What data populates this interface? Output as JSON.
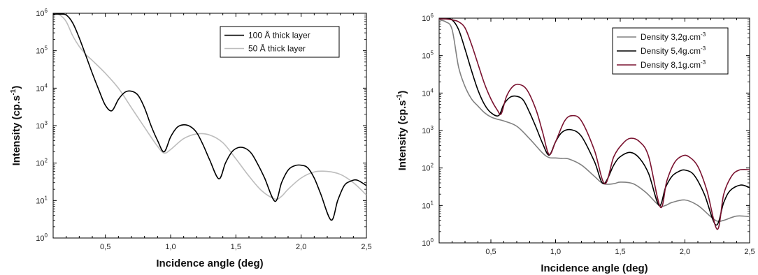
{
  "chart_data": [
    {
      "type": "line",
      "title": "",
      "xlabel": "Incidence angle (deg)",
      "ylabel": "Intensity (cp.s",
      "ylabel_sup": "-1",
      "ylabel_close": ")",
      "xscale": "linear",
      "yscale": "log",
      "xlim": [
        0.1,
        2.5
      ],
      "ylim": [
        1,
        1000000
      ],
      "x_ticks": [
        0.5,
        1.0,
        1.5,
        2.0,
        2.5
      ],
      "x_tick_labels": [
        "0,5",
        "1,0",
        "1,5",
        "2,0",
        "2,5"
      ],
      "y_tick_labels": [
        {
          "base": "10",
          "exp": "0"
        },
        {
          "base": "10",
          "exp": "1"
        },
        {
          "base": "10",
          "exp": "2"
        },
        {
          "base": "10",
          "exp": "3"
        },
        {
          "base": "10",
          "exp": "4"
        },
        {
          "base": "10",
          "exp": "5"
        },
        {
          "base": "10",
          "exp": "6"
        }
      ],
      "grid": false,
      "legend_position": "top-right",
      "series": [
        {
          "name": "100 Å thick layer",
          "color": "#000000",
          "x": [
            0.1,
            0.15,
            0.2,
            0.25,
            0.3,
            0.35,
            0.4,
            0.45,
            0.5,
            0.55,
            0.6,
            0.65,
            0.7,
            0.75,
            0.8,
            0.85,
            0.9,
            0.95,
            1.0,
            1.05,
            1.1,
            1.15,
            1.2,
            1.25,
            1.3,
            1.37,
            1.42,
            1.47,
            1.52,
            1.57,
            1.62,
            1.67,
            1.72,
            1.8,
            1.85,
            1.9,
            1.95,
            2.0,
            2.05,
            2.1,
            2.15,
            2.23,
            2.28,
            2.33,
            2.38,
            2.43,
            2.5
          ],
          "y": [
            950000,
            950000,
            900000,
            550000,
            220000,
            75000,
            25000,
            9000,
            3500,
            2500,
            5000,
            7800,
            8300,
            6500,
            3000,
            1000,
            400,
            200,
            500,
            900,
            1050,
            950,
            650,
            300,
            120,
            38,
            100,
            200,
            260,
            250,
            180,
            90,
            40,
            9.5,
            30,
            65,
            85,
            88,
            75,
            40,
            15,
            3,
            10,
            25,
            33,
            35,
            25
          ]
        },
        {
          "name": "50 Å thick layer",
          "color": "#bdbdbd",
          "x": [
            0.1,
            0.15,
            0.2,
            0.25,
            0.3,
            0.35,
            0.4,
            0.5,
            0.6,
            0.7,
            0.8,
            0.9,
            0.95,
            1.0,
            1.1,
            1.2,
            1.3,
            1.4,
            1.5,
            1.6,
            1.7,
            1.8,
            1.85,
            1.9,
            2.0,
            2.1,
            2.2,
            2.3,
            2.4,
            2.5
          ],
          "y": [
            950000,
            900000,
            600000,
            250000,
            130000,
            80000,
            55000,
            25000,
            10000,
            3000,
            900,
            280,
            185,
            230,
            450,
            600,
            560,
            350,
            130,
            45,
            18,
            11,
            13,
            20,
            40,
            58,
            60,
            50,
            30,
            14
          ]
        }
      ]
    },
    {
      "type": "line",
      "title": "",
      "xlabel": "Incidence angle (deg)",
      "ylabel": "Intensity (cp.s",
      "ylabel_sup": "-1",
      "ylabel_close": ")",
      "xscale": "linear",
      "yscale": "log",
      "xlim": [
        0.1,
        2.5
      ],
      "ylim": [
        1,
        1000000
      ],
      "x_ticks": [
        0.5,
        1.0,
        1.5,
        2.0,
        2.5
      ],
      "x_tick_labels": [
        "0,5",
        "1,0",
        "1,5",
        "2,0",
        "2,5"
      ],
      "y_tick_labels": [
        {
          "base": "10",
          "exp": "0"
        },
        {
          "base": "10",
          "exp": "1"
        },
        {
          "base": "10",
          "exp": "2"
        },
        {
          "base": "10",
          "exp": "3"
        },
        {
          "base": "10",
          "exp": "4"
        },
        {
          "base": "10",
          "exp": "5"
        },
        {
          "base": "10",
          "exp": "6"
        }
      ],
      "grid": false,
      "legend_position": "top-right",
      "series": [
        {
          "name": "Density 3,2g.cm",
          "name_sup": "-3",
          "color": "#808080",
          "x": [
            0.1,
            0.15,
            0.2,
            0.25,
            0.3,
            0.35,
            0.4,
            0.45,
            0.5,
            0.55,
            0.6,
            0.7,
            0.8,
            0.9,
            0.95,
            1.0,
            1.05,
            1.1,
            1.2,
            1.3,
            1.37,
            1.45,
            1.5,
            1.6,
            1.7,
            1.8,
            1.85,
            1.9,
            2.0,
            2.1,
            2.2,
            2.25,
            2.3,
            2.4,
            2.5
          ],
          "y": [
            900000,
            800000,
            500000,
            50000,
            15000,
            7000,
            4500,
            3000,
            2300,
            2000,
            1800,
            1300,
            600,
            250,
            190,
            185,
            180,
            175,
            120,
            60,
            38,
            38,
            42,
            38,
            22,
            10,
            10,
            12,
            14,
            10,
            5,
            3.8,
            4,
            5.2,
            5
          ]
        },
        {
          "name": "Density 5,4g.cm",
          "name_sup": "-3",
          "color": "#000000",
          "x": [
            0.1,
            0.15,
            0.2,
            0.25,
            0.3,
            0.35,
            0.4,
            0.45,
            0.5,
            0.56,
            0.6,
            0.65,
            0.7,
            0.75,
            0.8,
            0.85,
            0.9,
            0.95,
            1.0,
            1.05,
            1.12,
            1.2,
            1.3,
            1.37,
            1.45,
            1.5,
            1.58,
            1.65,
            1.72,
            1.8,
            1.85,
            1.9,
            1.95,
            2.0,
            2.07,
            2.15,
            2.24,
            2.3,
            2.35,
            2.43,
            2.5
          ],
          "y": [
            950000,
            950000,
            900000,
            500000,
            150000,
            40000,
            12000,
            5000,
            3000,
            2500,
            5000,
            7800,
            8200,
            6500,
            3000,
            1200,
            450,
            220,
            500,
            900,
            1050,
            700,
            150,
            38,
            120,
            200,
            260,
            180,
            70,
            10,
            30,
            60,
            80,
            88,
            65,
            20,
            3,
            12,
            25,
            35,
            30
          ]
        },
        {
          "name": "Density 8,1g.cm",
          "name_sup": "-3",
          "color": "#7a1330",
          "x": [
            0.1,
            0.15,
            0.2,
            0.25,
            0.3,
            0.35,
            0.4,
            0.45,
            0.5,
            0.55,
            0.58,
            0.62,
            0.67,
            0.72,
            0.78,
            0.85,
            0.9,
            0.95,
            1.0,
            1.07,
            1.13,
            1.2,
            1.3,
            1.38,
            1.45,
            1.52,
            1.58,
            1.65,
            1.72,
            1.81,
            1.86,
            1.92,
            1.98,
            2.03,
            2.1,
            2.17,
            2.25,
            2.3,
            2.36,
            2.42,
            2.5
          ],
          "y": [
            950000,
            950000,
            900000,
            800000,
            550000,
            200000,
            60000,
            18000,
            7000,
            3500,
            2800,
            8000,
            15000,
            17000,
            12000,
            3500,
            900,
            230,
            500,
            1800,
            2500,
            1800,
            300,
            38,
            200,
            450,
            620,
            500,
            200,
            9,
            45,
            140,
            210,
            200,
            110,
            25,
            2.3,
            20,
            60,
            88,
            90
          ]
        }
      ]
    }
  ]
}
